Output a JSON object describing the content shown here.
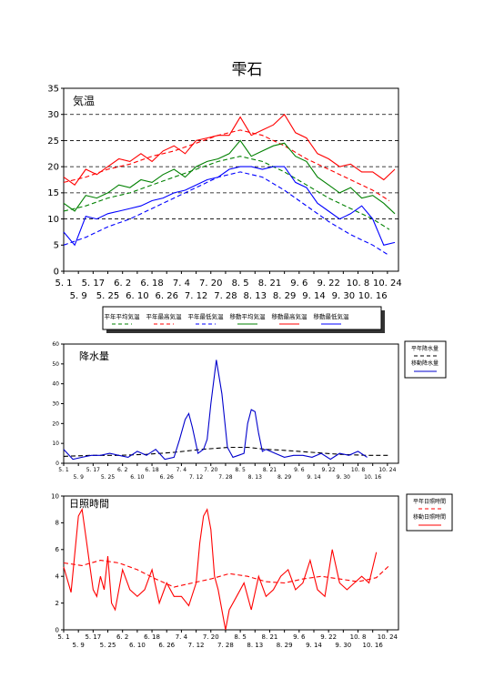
{
  "page_title": "雫石",
  "colors": {
    "frame": "#000000",
    "temp_avg": "#008000",
    "temp_max": "#ff0000",
    "temp_min": "#0000ff",
    "rain": "#0000cc",
    "rain_normal": "#000000",
    "sun": "#ff0000",
    "sun_normal": "#ff0000"
  },
  "chart_data": [
    {
      "type": "line",
      "panel_label": "気温",
      "ylim": [
        0,
        35
      ],
      "yticks": [
        0,
        5,
        10,
        15,
        20,
        25,
        30,
        35
      ],
      "grid": "dashed horizontal at 10,15,20,25,30",
      "x_ticks_row1": [
        "5. 1",
        "5. 17",
        "6. 2",
        "6. 18",
        "7. 4",
        "7. 20",
        "8. 5",
        "8. 21",
        "9. 6",
        "9. 22",
        "10. 8",
        "10. 24"
      ],
      "x_ticks_row2": [
        "5. 9",
        "5. 25",
        "6. 10",
        "6. 26",
        "7. 12",
        "7. 28",
        "8. 13",
        "8. 29",
        "9. 14",
        "9. 30",
        "10. 16"
      ],
      "legend_position": "bottom",
      "x_days": [
        0,
        6,
        12,
        18,
        24,
        30,
        36,
        42,
        48,
        54,
        60,
        66,
        72,
        78,
        84,
        90,
        96,
        102,
        108,
        114,
        120,
        126,
        132,
        138,
        144,
        150,
        156,
        162,
        168,
        174,
        180
      ],
      "series": [
        {
          "name": "平年平均気温",
          "style": "dashed",
          "color": "temp_avg",
          "x_days": [
            0,
            12,
            24,
            36,
            48,
            60,
            72,
            84,
            96,
            108,
            120,
            132,
            144,
            156,
            168,
            177
          ],
          "values": [
            11.5,
            12.5,
            14.0,
            15.0,
            16.5,
            18.0,
            19.5,
            21.0,
            22.0,
            21.0,
            19.0,
            16.5,
            14.0,
            12.0,
            10.0,
            8.0
          ]
        },
        {
          "name": "平年最高気温",
          "style": "dashed",
          "color": "temp_max",
          "x_days": [
            0,
            12,
            24,
            36,
            48,
            60,
            72,
            84,
            96,
            108,
            120,
            132,
            144,
            156,
            168,
            177
          ],
          "values": [
            17.0,
            18.0,
            19.5,
            20.5,
            22.0,
            23.0,
            24.5,
            26.0,
            27.0,
            26.0,
            24.0,
            21.5,
            19.5,
            17.5,
            15.5,
            13.5
          ]
        },
        {
          "name": "平年最低気温",
          "style": "dashed",
          "color": "temp_min",
          "x_days": [
            0,
            12,
            24,
            36,
            48,
            60,
            72,
            84,
            96,
            108,
            120,
            132,
            144,
            156,
            168,
            177
          ],
          "values": [
            5.0,
            6.5,
            8.5,
            10.0,
            12.0,
            14.0,
            16.0,
            18.0,
            19.0,
            18.0,
            15.5,
            12.5,
            9.5,
            7.0,
            5.0,
            3.0
          ]
        },
        {
          "name": "移動平均気温",
          "style": "solid",
          "color": "temp_avg",
          "values": [
            13,
            11.5,
            14.5,
            14,
            15,
            16.5,
            16,
            17.5,
            17,
            18.5,
            19.5,
            18,
            20,
            21,
            21.5,
            22.5,
            25,
            22,
            23,
            24,
            24.5,
            22,
            21,
            18,
            16.5,
            15,
            16,
            14,
            14.5,
            13,
            11
          ]
        },
        {
          "name": "移動最高気温",
          "style": "solid",
          "color": "temp_max",
          "values": [
            18,
            16.5,
            19.5,
            18.5,
            20,
            21.5,
            21,
            22.5,
            21,
            23,
            24,
            22.5,
            25,
            25.5,
            26,
            26,
            29.5,
            26,
            27,
            28,
            30,
            26.5,
            25.5,
            22.5,
            21.5,
            20,
            20.5,
            19,
            19,
            17.5,
            19.5
          ]
        },
        {
          "name": "移動最低気温",
          "style": "solid",
          "color": "temp_min",
          "values": [
            7.5,
            5,
            10.5,
            10,
            11,
            11.5,
            12,
            12.5,
            13.5,
            14,
            15,
            15.5,
            16.5,
            17.5,
            18,
            19.5,
            20,
            20,
            19.5,
            20,
            20,
            17,
            16,
            13,
            11.5,
            10,
            11,
            12.5,
            10,
            5,
            5.5
          ]
        }
      ]
    },
    {
      "type": "line",
      "panel_label": "降水量",
      "ylim": [
        0,
        60
      ],
      "yticks": [
        0,
        10,
        20,
        30,
        40,
        50,
        60
      ],
      "x_ticks_row1": [
        "5. 1",
        "5. 17",
        "6. 2",
        "6. 18",
        "7. 4",
        "7. 20",
        "8. 5",
        "8. 21",
        "9. 6",
        "9. 22",
        "10. 8",
        "10. 24"
      ],
      "x_ticks_row2": [
        "5. 9",
        "5. 25",
        "6. 10",
        "6. 26",
        "7. 12",
        "7. 28",
        "8. 13",
        "8. 29",
        "9. 14",
        "9. 30",
        "10. 16"
      ],
      "legend_position": "right",
      "series": [
        {
          "name": "平年降水量",
          "style": "dashed",
          "color": "rain_normal",
          "x_days": [
            0,
            15,
            30,
            45,
            60,
            75,
            90,
            100,
            110,
            120,
            135,
            150,
            165,
            177
          ],
          "values": [
            3.5,
            4,
            4,
            4.5,
            5.5,
            7,
            8,
            8,
            7,
            6.5,
            5.5,
            4.5,
            4,
            4
          ]
        },
        {
          "name": "移動降水量",
          "style": "solid",
          "color": "rain",
          "x_days": [
            0,
            5,
            10,
            15,
            20,
            25,
            30,
            35,
            40,
            45,
            50,
            55,
            60,
            63,
            66,
            68,
            70,
            73,
            76,
            78,
            80,
            83,
            86,
            89,
            92,
            95,
            98,
            100,
            102,
            104,
            106,
            108,
            110,
            115,
            120,
            125,
            130,
            135,
            140,
            145,
            150,
            155,
            160,
            165
          ],
          "values": [
            7,
            2,
            3,
            4,
            4,
            5,
            4,
            3,
            6,
            4,
            7,
            2,
            3,
            12,
            22,
            25,
            18,
            5,
            7,
            12,
            30,
            52,
            35,
            8,
            3,
            4,
            5,
            20,
            27,
            26,
            15,
            6,
            7,
            5,
            3,
            4,
            4,
            3,
            5,
            2,
            5,
            4,
            6,
            3
          ]
        }
      ]
    },
    {
      "type": "line",
      "panel_label": "日照時間",
      "ylim": [
        0,
        10
      ],
      "yticks": [
        0,
        2,
        4,
        6,
        8,
        10
      ],
      "x_ticks_row1": [
        "5. 1",
        "5. 17",
        "6. 2",
        "6. 18",
        "7. 4",
        "7. 20",
        "8. 5",
        "8. 21",
        "9. 6",
        "9. 22",
        "10. 8",
        "10. 24"
      ],
      "x_ticks_row2": [
        "5. 9",
        "5. 25",
        "6. 10",
        "6. 26",
        "7. 12",
        "7. 28",
        "8. 13",
        "8. 29",
        "9. 14",
        "9. 30",
        "10. 16"
      ],
      "legend_position": "right",
      "series": [
        {
          "name": "平年日照時間",
          "style": "dashed",
          "color": "sun_normal",
          "x_days": [
            0,
            10,
            20,
            30,
            40,
            50,
            60,
            70,
            80,
            90,
            100,
            110,
            120,
            130,
            140,
            150,
            160,
            170,
            177
          ],
          "values": [
            5,
            4.8,
            5.2,
            5,
            4.5,
            3.8,
            3.2,
            3.5,
            3.8,
            4.2,
            4,
            3.6,
            3.5,
            3.8,
            4,
            3.8,
            3.6,
            3.9,
            4.8
          ]
        },
        {
          "name": "移動日照時間",
          "style": "solid",
          "color": "sun",
          "x_days": [
            0,
            4,
            8,
            10,
            12,
            14,
            16,
            18,
            20,
            22,
            24,
            26,
            28,
            32,
            36,
            40,
            44,
            48,
            52,
            56,
            60,
            64,
            68,
            72,
            74,
            76,
            78,
            80,
            82,
            84,
            88,
            90,
            94,
            98,
            102,
            106,
            110,
            114,
            118,
            122,
            126,
            130,
            134,
            138,
            142,
            146,
            150,
            154,
            158,
            162,
            166,
            170
          ],
          "values": [
            4.7,
            2.8,
            8.5,
            9,
            7,
            5,
            3,
            2.5,
            4,
            3,
            5.5,
            2,
            1.5,
            4.5,
            3,
            2.5,
            3,
            4.5,
            2,
            3.5,
            2.5,
            2.5,
            1.8,
            3.5,
            6.5,
            8.5,
            9,
            7.5,
            4,
            3,
            0,
            1.5,
            2.5,
            3.5,
            1.5,
            4,
            2.5,
            3,
            4,
            4.5,
            3,
            3.5,
            5.2,
            3,
            2.5,
            6,
            3.5,
            3,
            3.5,
            4,
            3.5,
            5.8
          ]
        }
      ]
    }
  ]
}
